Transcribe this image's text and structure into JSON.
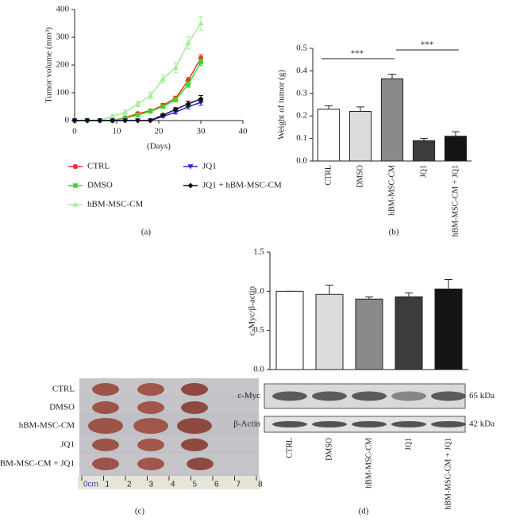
{
  "panel_labels": [
    "(a)",
    "(b)",
    "(c)",
    "(d)"
  ],
  "chart_data": [
    {
      "type": "line",
      "ylabel": "Tumor volume (mm³)",
      "xlabel": "(Days)",
      "x": [
        0,
        3,
        6,
        9,
        12,
        15,
        18,
        21,
        24,
        27,
        30
      ],
      "xlim": [
        0,
        40
      ],
      "xticks": [
        0,
        10,
        20,
        30,
        40
      ],
      "ylim": [
        0,
        400
      ],
      "yticks": [
        0,
        100,
        200,
        300,
        400
      ],
      "series": [
        {
          "name": "CTRL",
          "color": "#e8322a",
          "marker": "circle",
          "values": [
            0,
            0,
            0,
            0,
            10,
            25,
            35,
            55,
            80,
            145,
            225
          ],
          "errors": [
            0,
            0,
            0,
            0,
            3,
            4,
            5,
            6,
            8,
            10,
            12
          ]
        },
        {
          "name": "DMSO",
          "color": "#3fd62b",
          "marker": "square",
          "values": [
            0,
            0,
            0,
            0,
            8,
            20,
            33,
            50,
            75,
            130,
            210
          ],
          "errors": [
            0,
            0,
            0,
            0,
            3,
            4,
            5,
            6,
            8,
            10,
            12
          ]
        },
        {
          "name": "hBM-MSC-CM",
          "color": "#a3ec97",
          "marker": "triangle",
          "values": [
            0,
            0,
            0,
            15,
            30,
            60,
            90,
            150,
            190,
            280,
            350
          ],
          "errors": [
            0,
            0,
            0,
            5,
            8,
            10,
            12,
            15,
            18,
            22,
            25
          ]
        },
        {
          "name": "JQ1",
          "color": "#2b2fd6",
          "marker": "triangle-down",
          "values": [
            0,
            0,
            0,
            0,
            0,
            0,
            0,
            15,
            30,
            50,
            65
          ],
          "errors": [
            0,
            0,
            0,
            0,
            0,
            0,
            0,
            4,
            6,
            8,
            10
          ]
        },
        {
          "name": "JQ1 + hBM-MSC-CM",
          "color": "#111111",
          "marker": "diamond",
          "values": [
            0,
            0,
            0,
            0,
            0,
            0,
            0,
            20,
            40,
            60,
            78
          ],
          "errors": [
            0,
            0,
            0,
            0,
            0,
            0,
            0,
            4,
            6,
            10,
            12
          ]
        }
      ]
    },
    {
      "type": "bar",
      "ylabel": "Weight of tumor (g)",
      "categories": [
        "CTRL",
        "DMSO",
        "hBM-MSC-CM",
        "JQ1",
        "hBM-MSC-CM + JQ1"
      ],
      "values": [
        0.23,
        0.22,
        0.365,
        0.09,
        0.11
      ],
      "errors": [
        0.015,
        0.02,
        0.02,
        0.01,
        0.02
      ],
      "colors": [
        "#ffffff",
        "#dcdcdc",
        "#8a8a8a",
        "#3c3c3c",
        "#141414"
      ],
      "ylim": [
        0,
        0.5
      ],
      "yticks": [
        {
          "value": 0,
          "label": "0.0"
        },
        0.1,
        0.2,
        0.3,
        0.4,
        0.5
      ],
      "annotations": [
        "***",
        "***"
      ]
    },
    {
      "type": "bar",
      "ylabel": "c-Myc/β-actin",
      "categories": [
        "CTRL",
        "DMSO",
        "hBM-MSC-CM",
        "JQ1",
        "hBM-MSC-CM + JQ1"
      ],
      "values": [
        1.0,
        0.96,
        0.9,
        0.93,
        1.03
      ],
      "errors": [
        0,
        0.12,
        0.03,
        0.05,
        0.12
      ],
      "colors": [
        "#ffffff",
        "#dcdcdc",
        "#8a8a8a",
        "#3c3c3c",
        "#141414"
      ],
      "ylim": [
        0,
        1.5
      ],
      "yticks": [
        {
          "value": 0,
          "label": "0.0"
        },
        0.5,
        {
          "value": 1,
          "label": "1.0"
        },
        1.5
      ]
    }
  ],
  "photo": {
    "rows": [
      "CTRL",
      "DMSO",
      "hBM-MSC-CM",
      "JQ1",
      "hBM-MSC-CM + JQ1"
    ],
    "ruler": [
      "0cm",
      "1",
      "2",
      "3",
      "4",
      "5",
      "6",
      "7",
      "8"
    ]
  },
  "blot": {
    "bands": [
      {
        "label": "c-Myc",
        "size": "65 kDa"
      },
      {
        "label": "β-Actin",
        "size": "42 kDa"
      }
    ]
  }
}
